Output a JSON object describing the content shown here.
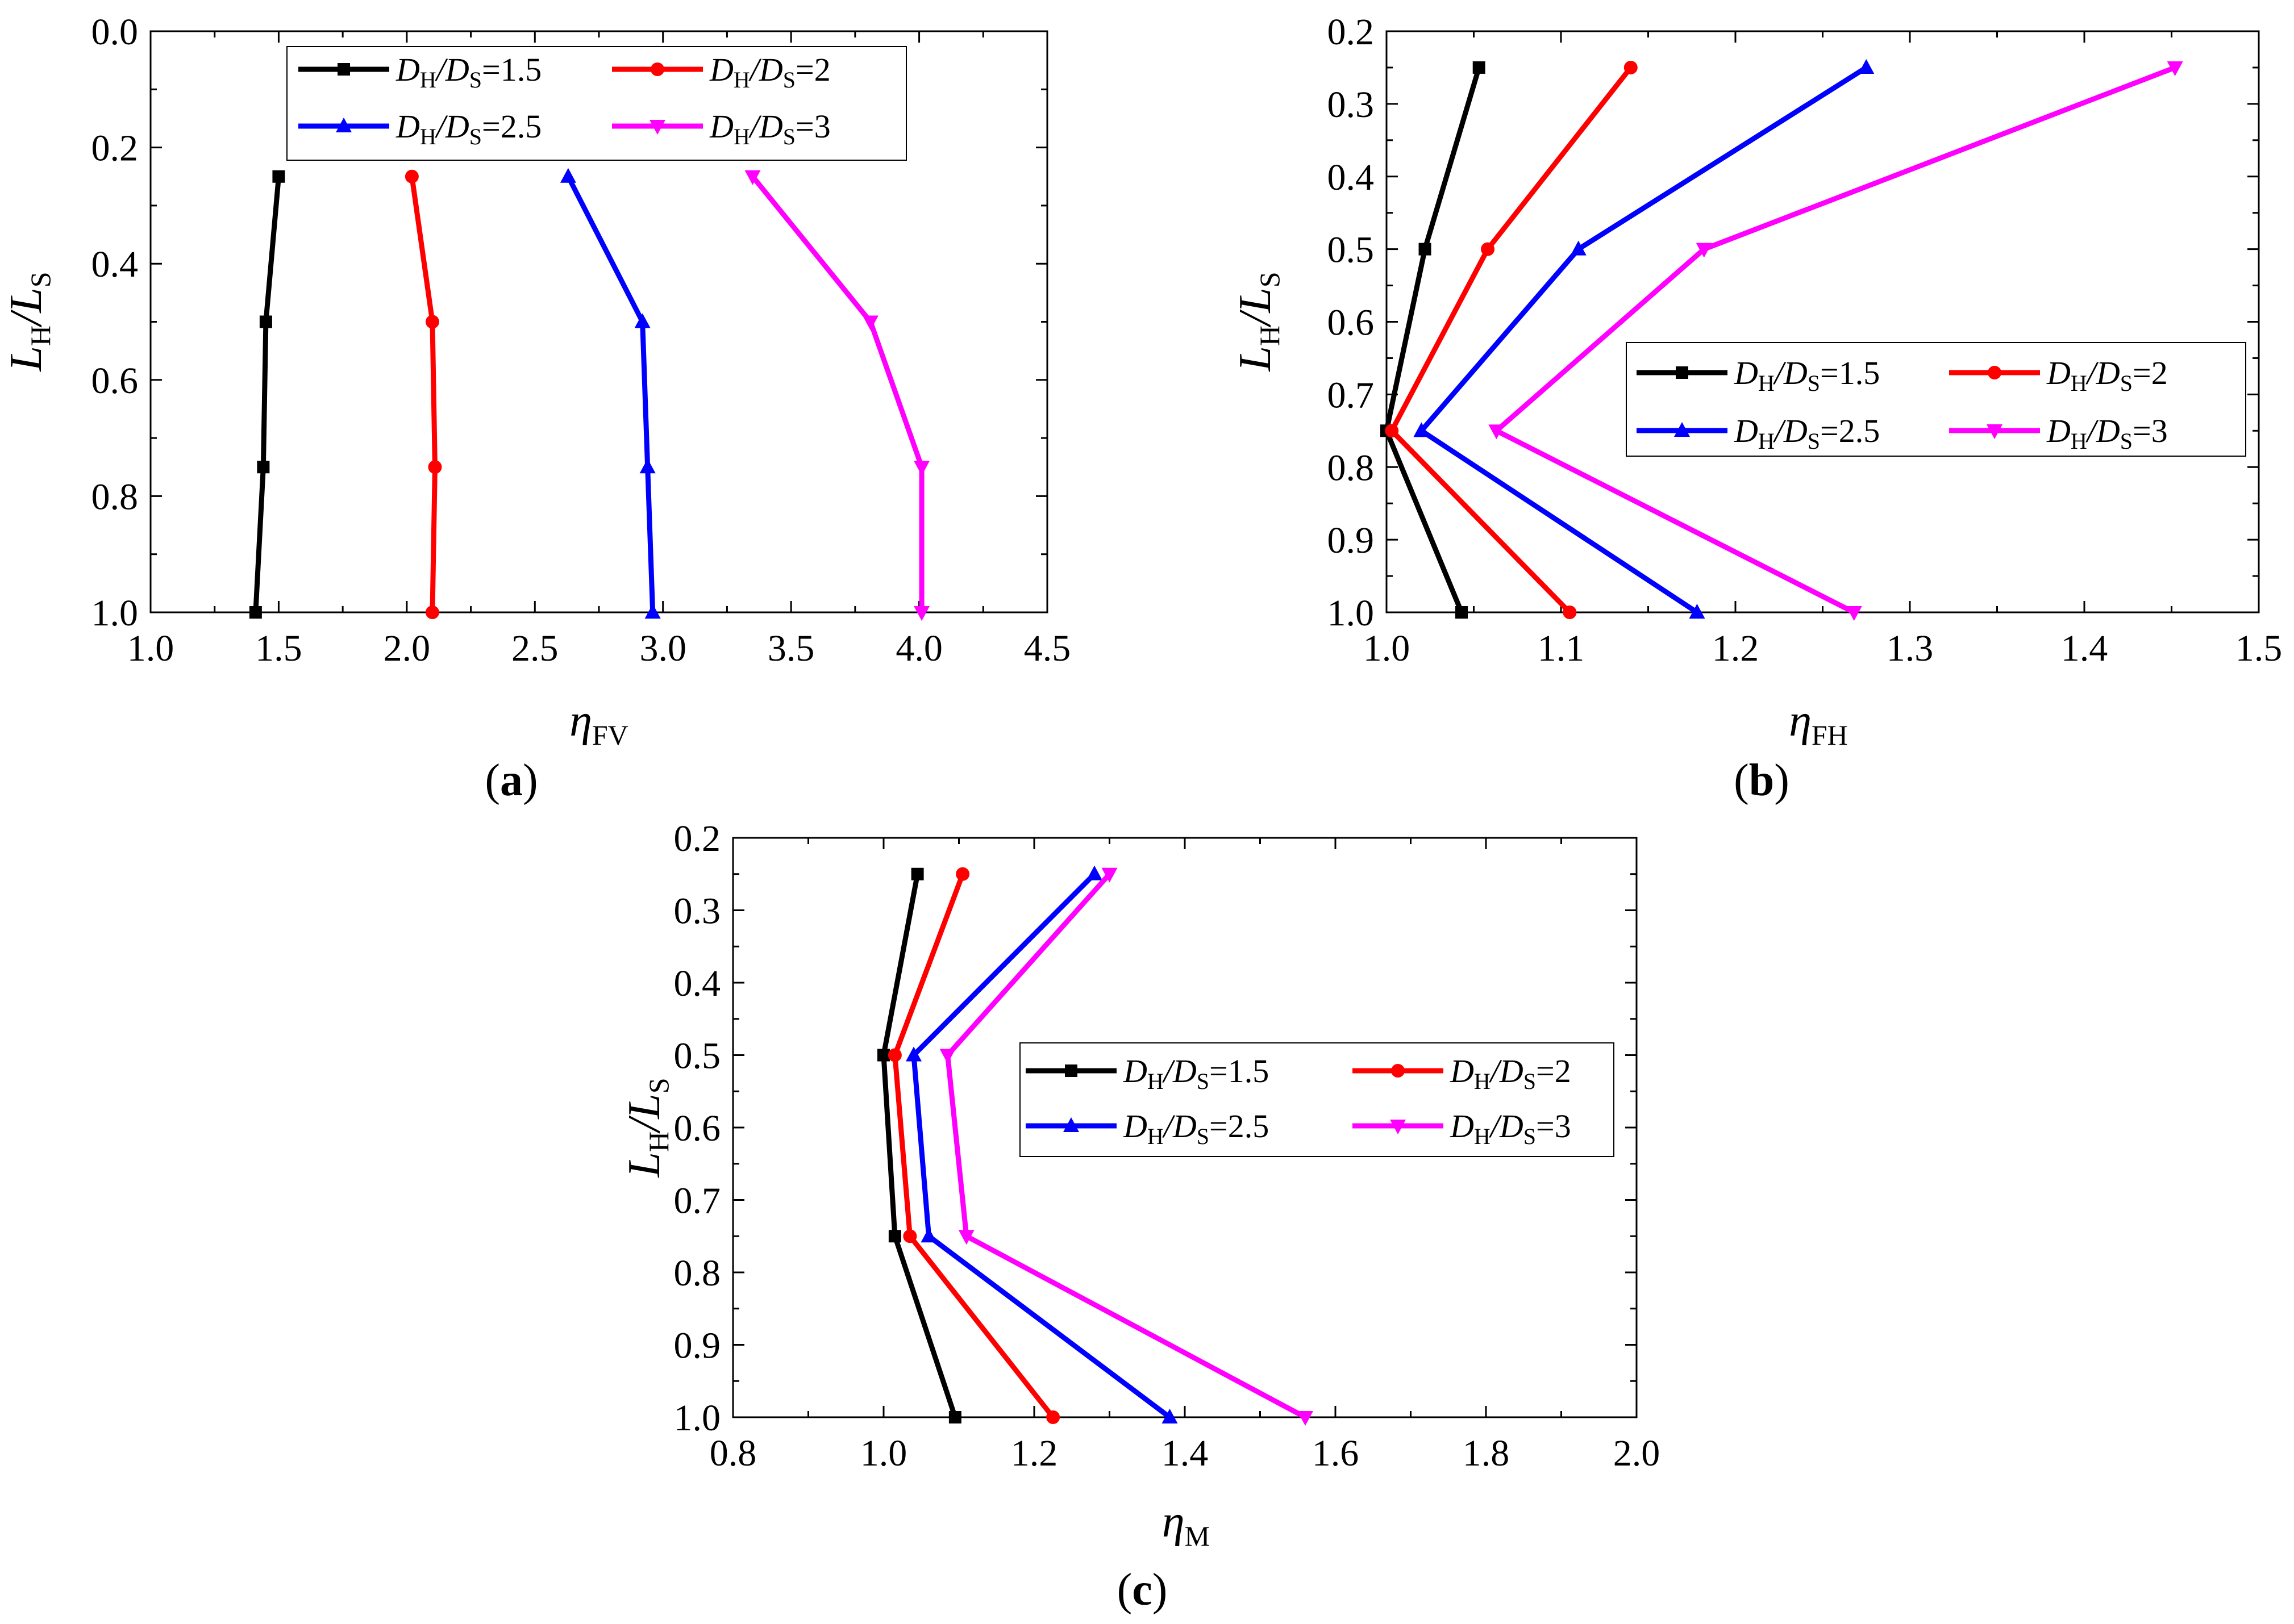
{
  "chart_data": [
    {
      "type": "line",
      "panel_label": "a",
      "xlabel": "η",
      "xlabel_sub": "FV",
      "ylabel": "L",
      "ylabel_sub": "H",
      "ylabel_slash": "/L",
      "ylabel_sub2": "S",
      "xlim": [
        1.0,
        4.5
      ],
      "ylim": [
        0.0,
        1.0
      ],
      "y_inverted": true,
      "xticks": [
        "1.0",
        "1.5",
        "2.0",
        "2.5",
        "3.0",
        "3.5",
        "4.0",
        "4.5"
      ],
      "yticks": [
        "0.0",
        "0.2",
        "0.4",
        "0.6",
        "0.8",
        "1.0"
      ],
      "legend_position": "top-center",
      "series": [
        {
          "name": "D_H/D_S=1.5",
          "ratio": "1.5",
          "color": "#000000",
          "marker": "square",
          "x": [
            1.5,
            1.45,
            1.44,
            1.41
          ],
          "y": [
            0.25,
            0.5,
            0.75,
            1.0
          ]
        },
        {
          "name": "D_H/D_S=2",
          "ratio": "2",
          "color": "#ff0000",
          "marker": "circle",
          "x": [
            2.02,
            2.1,
            2.11,
            2.1
          ],
          "y": [
            0.25,
            0.5,
            0.75,
            1.0
          ]
        },
        {
          "name": "D_H/D_S=2.5",
          "ratio": "2.5",
          "color": "#0000ff",
          "marker": "triangle-up",
          "x": [
            2.63,
            2.92,
            2.94,
            2.96
          ],
          "y": [
            0.25,
            0.5,
            0.75,
            1.0
          ]
        },
        {
          "name": "D_H/D_S=3",
          "ratio": "3",
          "color": "#ff00ff",
          "marker": "triangle-down",
          "x": [
            3.35,
            3.81,
            4.01,
            4.01
          ],
          "y": [
            0.25,
            0.5,
            0.75,
            1.0
          ]
        }
      ]
    },
    {
      "type": "line",
      "panel_label": "b",
      "xlabel": "η",
      "xlabel_sub": "FH",
      "ylabel": "L",
      "ylabel_sub": "H",
      "ylabel_slash": "/L",
      "ylabel_sub2": "S",
      "xlim": [
        1.0,
        1.5
      ],
      "ylim": [
        0.2,
        1.0
      ],
      "y_inverted": true,
      "xticks": [
        "1.0",
        "1.1",
        "1.2",
        "1.3",
        "1.4",
        "1.5"
      ],
      "yticks": [
        "0.2",
        "0.3",
        "0.4",
        "0.5",
        "0.6",
        "0.7",
        "0.8",
        "0.9",
        "1.0"
      ],
      "legend_position": "center-right",
      "series": [
        {
          "name": "D_H/D_S=1.5",
          "ratio": "1.5",
          "color": "#000000",
          "marker": "square",
          "x": [
            1.053,
            1.022,
            1.0,
            1.043
          ],
          "y": [
            0.25,
            0.5,
            0.75,
            1.0
          ]
        },
        {
          "name": "D_H/D_S=2",
          "ratio": "2",
          "color": "#ff0000",
          "marker": "circle",
          "x": [
            1.14,
            1.058,
            1.003,
            1.105
          ],
          "y": [
            0.25,
            0.5,
            0.75,
            1.0
          ]
        },
        {
          "name": "D_H/D_S=2.5",
          "ratio": "2.5",
          "color": "#0000ff",
          "marker": "triangle-up",
          "x": [
            1.275,
            1.11,
            1.02,
            1.178
          ],
          "y": [
            0.25,
            0.5,
            0.75,
            1.0
          ]
        },
        {
          "name": "D_H/D_S=3",
          "ratio": "3",
          "color": "#ff00ff",
          "marker": "triangle-down",
          "x": [
            1.452,
            1.182,
            1.063,
            1.268
          ],
          "y": [
            0.25,
            0.5,
            0.75,
            1.0
          ]
        }
      ]
    },
    {
      "type": "line",
      "panel_label": "c",
      "xlabel": "η",
      "xlabel_sub": "M",
      "ylabel": "L",
      "ylabel_sub": "H",
      "ylabel_slash": "/L",
      "ylabel_sub2": "S",
      "xlim": [
        0.8,
        2.0
      ],
      "ylim": [
        0.2,
        1.0
      ],
      "y_inverted": true,
      "xticks": [
        "0.8",
        "1.0",
        "1.2",
        "1.4",
        "1.6",
        "1.8",
        "2.0"
      ],
      "yticks": [
        "0.2",
        "0.3",
        "0.4",
        "0.5",
        "0.6",
        "0.7",
        "0.8",
        "0.9",
        "1.0"
      ],
      "legend_position": "center-right",
      "series": [
        {
          "name": "D_H/D_S=1.5",
          "ratio": "1.5",
          "color": "#000000",
          "marker": "square",
          "x": [
            1.045,
            1.0,
            1.015,
            1.095
          ],
          "y": [
            0.25,
            0.5,
            0.75,
            1.0
          ]
        },
        {
          "name": "D_H/D_S=2",
          "ratio": "2",
          "color": "#ff0000",
          "marker": "circle",
          "x": [
            1.105,
            1.015,
            1.035,
            1.225
          ],
          "y": [
            0.25,
            0.5,
            0.75,
            1.0
          ]
        },
        {
          "name": "D_H/D_S=2.5",
          "ratio": "2.5",
          "color": "#0000ff",
          "marker": "triangle-up",
          "x": [
            1.28,
            1.04,
            1.06,
            1.38
          ],
          "y": [
            0.25,
            0.5,
            0.75,
            1.0
          ]
        },
        {
          "name": "D_H/D_S=3",
          "ratio": "3",
          "color": "#ff00ff",
          "marker": "triangle-down",
          "x": [
            1.3,
            1.085,
            1.11,
            1.56
          ],
          "y": [
            0.25,
            0.5,
            0.75,
            1.0
          ]
        }
      ]
    }
  ]
}
